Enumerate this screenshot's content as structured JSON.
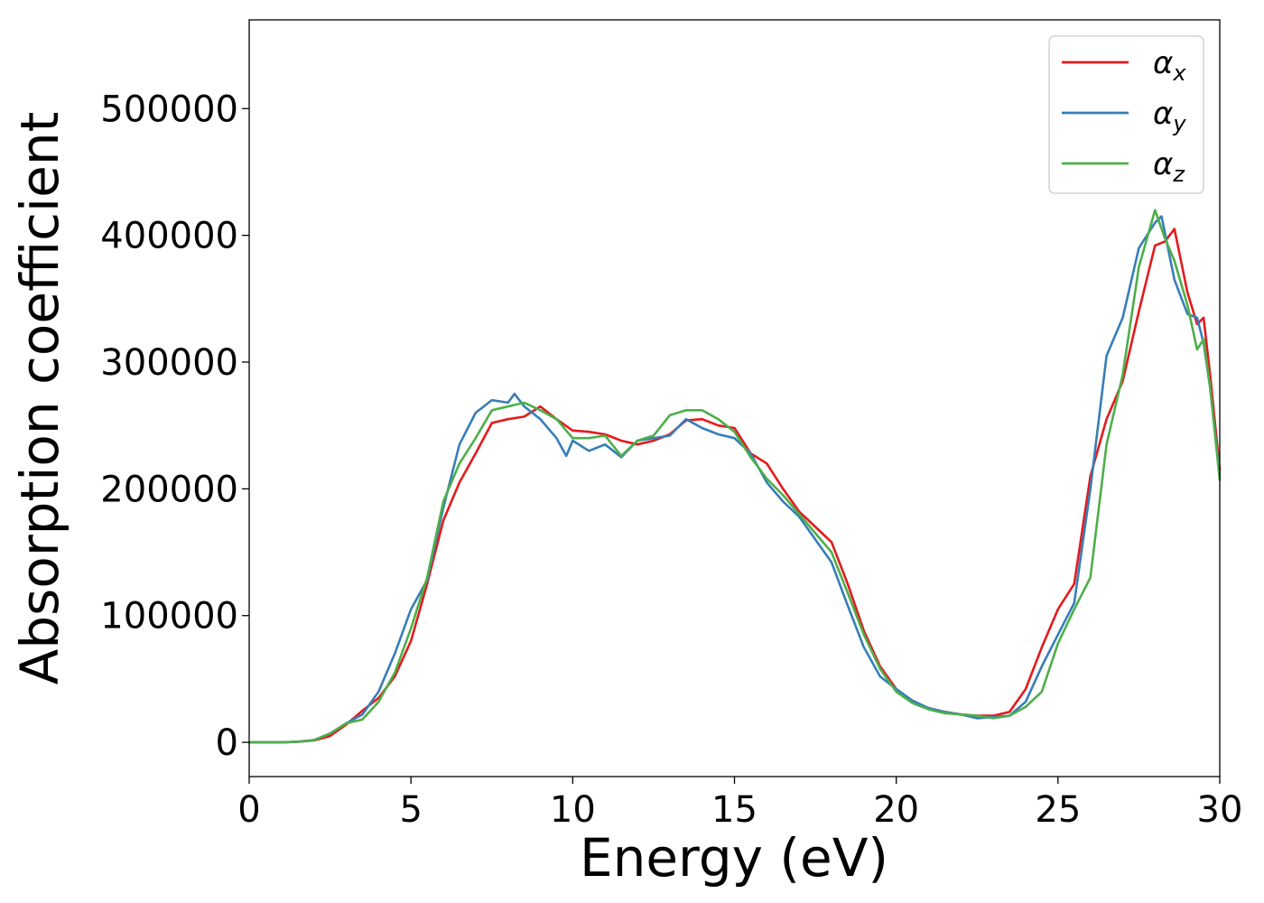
{
  "chart_data": {
    "type": "line",
    "title": "",
    "xlabel": "Energy (eV)",
    "ylabel": "Absorption coefficient",
    "xlim": [
      0,
      30
    ],
    "ylim": [
      -27000,
      570000
    ],
    "xticks": [
      0,
      5,
      10,
      15,
      20,
      25,
      30
    ],
    "yticks": [
      0,
      100000,
      200000,
      300000,
      400000,
      500000
    ],
    "grid": false,
    "legend_position": "top-right",
    "series": [
      {
        "name": "αx",
        "label_main": "α",
        "label_sub": "x",
        "color": "#e41a1c",
        "x": [
          0,
          1,
          1.5,
          2,
          2.5,
          3,
          3.5,
          4,
          4.5,
          5,
          5.5,
          6,
          6.5,
          7,
          7.5,
          8,
          8.5,
          9,
          9.5,
          10,
          10.5,
          11,
          11.5,
          12,
          12.5,
          13,
          13.5,
          14,
          14.5,
          15,
          15.5,
          16,
          16.5,
          17,
          17.5,
          18,
          18.5,
          19,
          19.5,
          20,
          20.5,
          21,
          21.5,
          22,
          22.5,
          23,
          23.5,
          24,
          24.5,
          25,
          25.5,
          26,
          26.5,
          27,
          27.5,
          28,
          28.3,
          28.6,
          29,
          29.3,
          29.5,
          29.7,
          30
        ],
        "y": [
          0,
          0,
          500,
          1500,
          5000,
          14000,
          25000,
          35000,
          52000,
          80000,
          125000,
          175000,
          205000,
          228000,
          252000,
          255000,
          257000,
          265000,
          255000,
          246000,
          245000,
          243000,
          238000,
          235000,
          238000,
          243000,
          254000,
          255000,
          250000,
          248000,
          228000,
          220000,
          200000,
          182000,
          170000,
          158000,
          125000,
          88000,
          60000,
          42000,
          32000,
          27000,
          24000,
          22000,
          21000,
          21000,
          24000,
          42000,
          75000,
          105000,
          125000,
          210000,
          255000,
          285000,
          340000,
          392000,
          395000,
          405000,
          355000,
          330000,
          335000,
          290000,
          215000
        ]
      },
      {
        "name": "αy",
        "label_main": "α",
        "label_sub": "y",
        "color": "#377eb8",
        "x": [
          0,
          1,
          1.5,
          2,
          2.5,
          3,
          3.5,
          4,
          4.5,
          5,
          5.5,
          6,
          6.5,
          7,
          7.5,
          8,
          8.2,
          8.5,
          9,
          9.5,
          9.8,
          10,
          10.5,
          11,
          11.5,
          12,
          12.5,
          13,
          13.5,
          14,
          14.5,
          15,
          15.5,
          16,
          16.5,
          17,
          17.5,
          18,
          18.5,
          19,
          19.5,
          20,
          20.5,
          21,
          21.5,
          22,
          22.5,
          23,
          23.5,
          24,
          24.5,
          25,
          25.5,
          26,
          26.5,
          27,
          27.5,
          28,
          28.2,
          28.6,
          29,
          29.3,
          29.5,
          29.7,
          30
        ],
        "y": [
          0,
          0,
          500,
          1800,
          7000,
          15000,
          22000,
          40000,
          70000,
          105000,
          128000,
          185000,
          235000,
          260000,
          270000,
          268000,
          275000,
          265000,
          255000,
          240000,
          226000,
          238000,
          230000,
          235000,
          225000,
          238000,
          240000,
          242000,
          255000,
          248000,
          243000,
          240000,
          228000,
          205000,
          190000,
          178000,
          160000,
          142000,
          108000,
          75000,
          52000,
          42000,
          33000,
          27000,
          24000,
          22000,
          19000,
          20000,
          21000,
          32000,
          60000,
          85000,
          110000,
          200000,
          305000,
          335000,
          390000,
          410000,
          415000,
          365000,
          338000,
          335000,
          315000,
          280000,
          210000
        ]
      },
      {
        "name": "αz",
        "label_main": "α",
        "label_sub": "z",
        "color": "#4daf4a",
        "x": [
          0,
          1,
          1.5,
          2,
          2.5,
          3,
          3.5,
          4,
          4.5,
          5,
          5.5,
          6,
          6.5,
          7,
          7.5,
          8,
          8.5,
          9,
          9.5,
          10,
          10.5,
          11,
          11.5,
          12,
          12.5,
          13,
          13.5,
          14,
          14.5,
          15,
          15.5,
          16,
          16.5,
          17,
          17.5,
          18,
          18.5,
          19,
          19.5,
          20,
          20.5,
          21,
          21.5,
          22,
          22.5,
          23,
          23.5,
          24,
          24.5,
          25,
          25.5,
          26,
          26.5,
          27,
          27.5,
          28,
          28.3,
          28.6,
          29,
          29.3,
          29.5,
          29.7,
          30
        ],
        "y": [
          0,
          0,
          500,
          1800,
          7000,
          15000,
          18000,
          32000,
          55000,
          90000,
          130000,
          190000,
          220000,
          240000,
          262000,
          265000,
          268000,
          262000,
          255000,
          240000,
          240000,
          242000,
          226000,
          238000,
          242000,
          258000,
          262000,
          262000,
          255000,
          245000,
          225000,
          208000,
          195000,
          180000,
          165000,
          150000,
          118000,
          85000,
          58000,
          40000,
          31000,
          26000,
          23000,
          22000,
          21000,
          19000,
          21000,
          28000,
          40000,
          78000,
          105000,
          130000,
          235000,
          290000,
          375000,
          420000,
          398000,
          380000,
          345000,
          310000,
          318000,
          280000,
          207000
        ]
      }
    ]
  }
}
